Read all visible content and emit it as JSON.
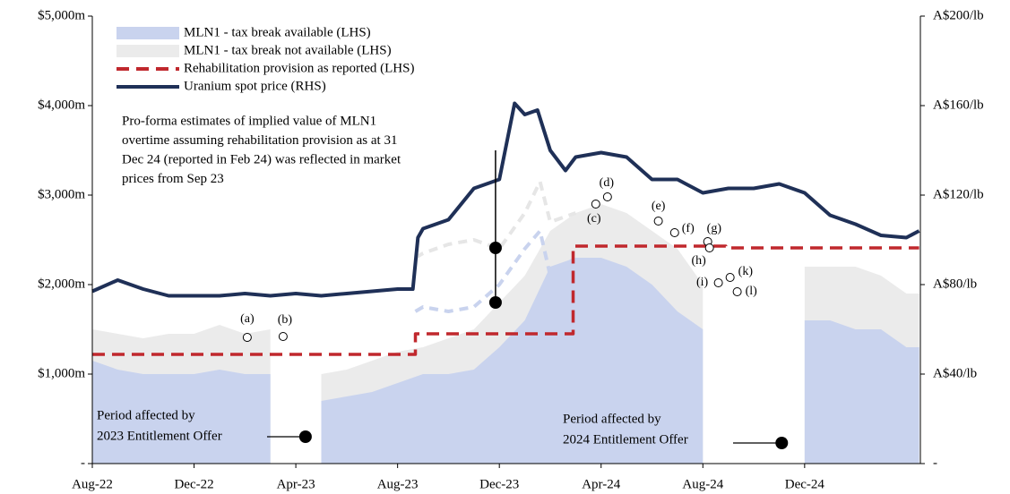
{
  "chart_data": {
    "type": "line",
    "xlim": [
      0,
      32.55
    ],
    "xticks": [
      {
        "value": 0,
        "label": "Aug-22"
      },
      {
        "value": 4,
        "label": "Dec-22"
      },
      {
        "value": 8,
        "label": "Apr-23"
      },
      {
        "value": 12,
        "label": "Aug-23"
      },
      {
        "value": 16,
        "label": "Dec-23"
      },
      {
        "value": 20,
        "label": "Apr-24"
      },
      {
        "value": 24,
        "label": "Aug-24"
      },
      {
        "value": 28,
        "label": "Dec-24"
      }
    ],
    "ylim": [
      0,
      5000
    ],
    "yticks": [
      {
        "value": 0,
        "label": "-"
      },
      {
        "value": 1000,
        "label": "$1,000m"
      },
      {
        "value": 2000,
        "label": "$2,000m"
      },
      {
        "value": 3000,
        "label": "$3,000m"
      },
      {
        "value": 4000,
        "label": "$4,000m"
      },
      {
        "value": 5000,
        "label": "$5,000m"
      }
    ],
    "y2lim": [
      0,
      200
    ],
    "y2ticks": [
      {
        "value": 0,
        "label": "-"
      },
      {
        "value": 40,
        "label": "A$40/lb"
      },
      {
        "value": 80,
        "label": "A$80/lb"
      },
      {
        "value": 120,
        "label": "A$120/lb"
      },
      {
        "value": 160,
        "label": "A$160/lb"
      },
      {
        "value": 200,
        "label": "A$200/lb"
      }
    ],
    "series": [
      {
        "name": "MLN1 - tax break not available (LHS)",
        "kind": "area",
        "color": "#ebebeb",
        "x": [
          0,
          1,
          2,
          3,
          4,
          5,
          6,
          7,
          8,
          9,
          10,
          11,
          12,
          13,
          14,
          15,
          16,
          17,
          18,
          19,
          20,
          21,
          22,
          23,
          24,
          25,
          26,
          27,
          28,
          29,
          30,
          31,
          32,
          32.5
        ],
        "values": [
          1500,
          1450,
          1400,
          1450,
          1450,
          1550,
          1450,
          1500,
          null,
          1000,
          1050,
          1150,
          1250,
          1300,
          1400,
          1500,
          1800,
          2100,
          2600,
          2800,
          2900,
          2800,
          2600,
          2400,
          2000,
          null,
          null,
          null,
          2200,
          2200,
          2200,
          2100,
          1900,
          1900
        ]
      },
      {
        "name": "MLN1 - tax break available (LHS)",
        "kind": "area",
        "color": "#c9d3ee",
        "x": [
          0,
          1,
          2,
          3,
          4,
          5,
          6,
          7,
          8,
          9,
          10,
          11,
          12,
          13,
          14,
          15,
          16,
          17,
          18,
          19,
          20,
          21,
          22,
          23,
          24,
          25,
          26,
          27,
          28,
          29,
          30,
          31,
          32,
          32.5
        ],
        "values": [
          1150,
          1050,
          1000,
          1000,
          1000,
          1050,
          1000,
          1000,
          null,
          700,
          750,
          800,
          900,
          1000,
          1000,
          1050,
          1300,
          1600,
          2200,
          2300,
          2300,
          2200,
          2000,
          1700,
          1500,
          null,
          null,
          null,
          1600,
          1600,
          1500,
          1500,
          1300,
          1300
        ]
      },
      {
        "kind": "dashed",
        "color": "#e6e6e6",
        "x": [
          12.7,
          13,
          14,
          15,
          16,
          17,
          17.6,
          18,
          19
        ],
        "values": [
          2300,
          2350,
          2450,
          2500,
          2400,
          2800,
          3150,
          2700,
          2800
        ]
      },
      {
        "kind": "dashed",
        "color": "#c9d3ee",
        "x": [
          12.7,
          13,
          14,
          15,
          16,
          17,
          17.6,
          18,
          19
        ],
        "values": [
          1700,
          1750,
          1700,
          1750,
          2000,
          2400,
          2600,
          2100,
          2300
        ]
      },
      {
        "name": "Rehabilitation provision as reported (LHS)",
        "kind": "line",
        "dash": true,
        "color": "#c0282d",
        "x": [
          0,
          12.7,
          12.7,
          18.9,
          18.9,
          24.9,
          24.9,
          32.5
        ],
        "values": [
          1220,
          1220,
          1450,
          1450,
          2430,
          2430,
          2410,
          2410
        ]
      },
      {
        "name": "Uranium spot price (RHS)",
        "kind": "line",
        "axis": "y2",
        "color": "#1f3057",
        "x": [
          0,
          1,
          2,
          3,
          4,
          5,
          6,
          7,
          8,
          9,
          10,
          11,
          12,
          12.6,
          12.8,
          13,
          14,
          15,
          16,
          16.6,
          17,
          17.5,
          18,
          18.6,
          19,
          20,
          21,
          22,
          23,
          24,
          25,
          26,
          27,
          28,
          29,
          30,
          31,
          32,
          32.5
        ],
        "values": [
          77,
          82,
          78,
          75,
          75,
          75,
          76,
          75,
          76,
          75,
          76,
          77,
          78,
          78,
          101,
          105,
          109,
          123,
          127,
          161,
          156,
          158,
          140,
          131,
          137,
          139,
          137,
          127,
          127,
          121,
          123,
          123,
          125,
          121,
          111,
          107,
          102,
          101,
          104
        ]
      }
    ],
    "points": [
      {
        "label": "(a)",
        "x": 6.09,
        "y": 1410
      },
      {
        "label": "(b)",
        "x": 7.5,
        "y": 1420
      },
      {
        "label": "(c)",
        "x": 19.79,
        "y": 2900
      },
      {
        "label": "(d)",
        "x": 20.25,
        "y": 2980
      },
      {
        "label": "(e)",
        "x": 22.25,
        "y": 2710
      },
      {
        "label": "(f)",
        "x": 22.89,
        "y": 2580
      },
      {
        "label": "(g)",
        "x": 24.19,
        "y": 2480
      },
      {
        "label": "(h)",
        "x": 24.26,
        "y": 2410
      },
      {
        "label": "(i)",
        "x": 24.61,
        "y": 2020
      },
      {
        "label": "(k)",
        "x": 25.07,
        "y": 2080
      },
      {
        "label": "(l)",
        "x": 25.35,
        "y": 1920
      }
    ],
    "annotations": [
      {
        "lines": [
          "Pro-forma estimates of implied value of MLN1",
          "overtime assuming rehabilitation provision as at 31",
          "Dec 24 (reported in Feb 24) was reflected in market",
          "prices from Sep 23"
        ],
        "x": 15.85,
        "y": [
          2410,
          1800
        ]
      },
      {
        "lines": [
          "Period affected by",
          "2023 Entitlement Offer"
        ],
        "x": 8.38,
        "y": [
          300
        ]
      },
      {
        "lines": [
          "Period affected by",
          "2024 Entitlement Offer"
        ],
        "x": 27.1,
        "y": [
          230
        ]
      }
    ]
  }
}
